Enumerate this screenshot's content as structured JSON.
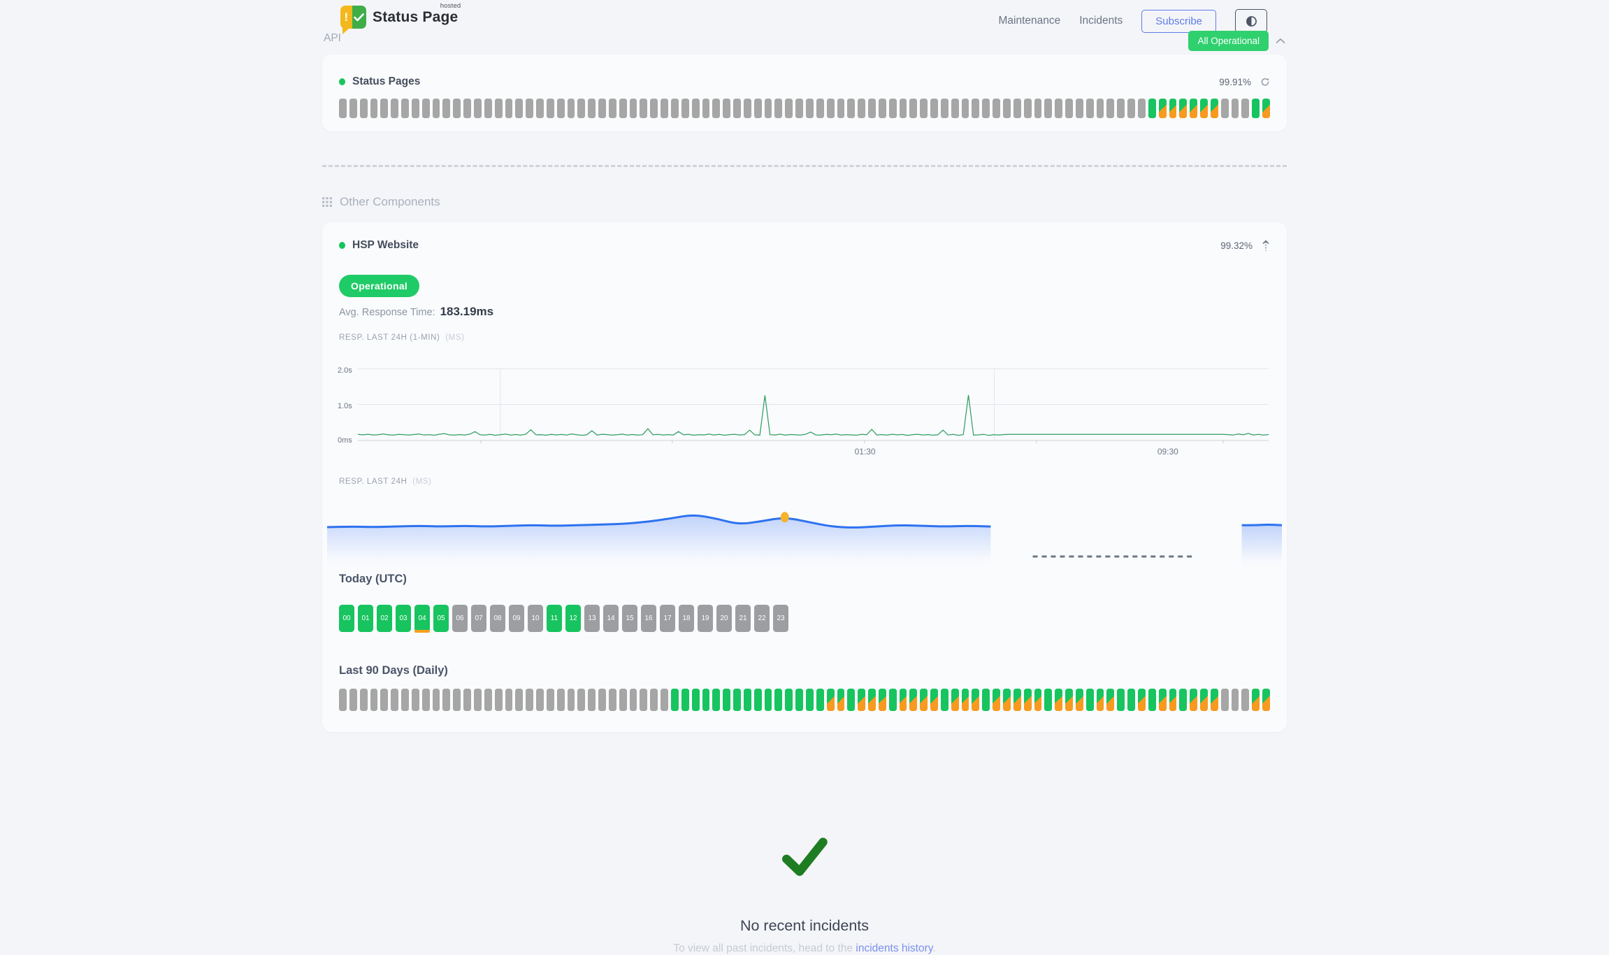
{
  "header": {
    "brand_superscript": "hosted",
    "brand_name": "Status Page",
    "brand_exclaim": "!",
    "nav": {
      "maintenance": "Maintenance",
      "incidents": "Incidents"
    },
    "subscribe_label": "Subscribe",
    "status_badge": "All Operational"
  },
  "api_section": {
    "title": "API",
    "component_name": "Status Pages",
    "uptime": "99.91%",
    "bars_pattern": "nnnnnnnnnnnnnnnnnnnnnnnnnnnnnnnnnnnnnnnnnnnnnnnnnnnnnnnnnnnnnnnnnnnnnnnnnnnnnnuddddddnnnud"
  },
  "other_section": {
    "title": "Other Components",
    "component_name": "HSP Website",
    "uptime": "99.32%",
    "status_label": "Operational",
    "avg_response_label": "Avg. Response Time:",
    "avg_response_value": "183.19ms",
    "today_heading": "Today (UTC)",
    "hours": {
      "labels": [
        "00",
        "01",
        "02",
        "03",
        "04",
        "05",
        "06",
        "07",
        "08",
        "09",
        "10",
        "11",
        "12",
        "13",
        "14",
        "15",
        "16",
        "17",
        "18",
        "19",
        "20",
        "21",
        "22",
        "23"
      ],
      "pattern": "uuuuuunnnnnuunnnnnnnnnnn",
      "degraded_index": 4
    },
    "last90_heading": "Last 90 Days (Daily)",
    "last90_pattern": "nnnnnnnnnnnnnnnnnnnnnnnnnnnnnnnnuuuuuuuuuuuuuuudduddduddddudddudddddudddudduududdudddnnndd"
  },
  "incidents": {
    "title": "No recent incidents",
    "subtitle_prefix": "To view all past incidents, head to the ",
    "link_label": "incidents history",
    "subtitle_suffix": "."
  },
  "chart_data": [
    {
      "type": "line",
      "label": "RESP. LAST 24H (1-MIN)",
      "unit": "(MS)",
      "ylim_ms": [
        0,
        2000
      ],
      "ytick_labels": [
        "2.0s",
        "1.0s",
        "0ms"
      ],
      "xtick_labels": [
        "01:30",
        "09:30"
      ],
      "xtick_positions": [
        0.556,
        0.888
      ],
      "values": [
        168,
        155,
        173,
        149,
        162,
        181,
        158,
        147,
        170,
        159,
        152,
        166,
        178,
        150,
        161,
        145,
        172,
        188,
        156,
        149,
        163,
        152,
        174,
        246,
        158,
        150,
        169,
        144,
        160,
        177,
        151,
        165,
        148,
        172,
        298,
        157,
        162,
        146,
        171,
        154,
        167,
        149,
        178,
        161,
        143,
        158,
        269,
        150,
        173,
        164,
        148,
        159,
        175,
        152,
        166,
        147,
        161,
        326,
        155,
        170,
        149,
        163,
        152,
        247,
        158,
        171,
        146,
        160,
        154,
        176,
        150,
        168,
        145,
        159,
        172,
        153,
        164,
        287,
        157,
        148,
        1253,
        162,
        151,
        174,
        147,
        166,
        158,
        150,
        171,
        234,
        153,
        147,
        168,
        159,
        176,
        149,
        161,
        153,
        145,
        170,
        158,
        309,
        151,
        164,
        148,
        173,
        156,
        167,
        142,
        159,
        172,
        150,
        163,
        146,
        157,
        287,
        152,
        169,
        144,
        161,
        1262,
        148,
        155,
        170,
        139,
        162,
        150,
        166,
        171,
        171,
        170,
        171,
        170,
        170,
        171,
        170,
        170,
        170,
        171,
        170,
        170,
        170,
        171,
        170,
        170,
        170,
        170,
        171,
        170,
        170,
        170,
        171,
        170,
        170,
        170,
        171,
        170,
        170,
        170,
        170,
        171,
        170,
        170,
        171,
        170,
        170,
        170,
        170,
        171,
        170,
        170,
        163,
        149,
        178,
        158,
        196,
        152,
        171,
        147,
        165
      ]
    },
    {
      "type": "area",
      "label": "RESP. LAST 24H",
      "unit": "(MS)",
      "segments": [
        {
          "x_range": [
            0,
            0.695
          ],
          "values": [
            180,
            181,
            180,
            181,
            182,
            181,
            182,
            181,
            182,
            183,
            182,
            183,
            184,
            185,
            188,
            193,
            199,
            193,
            184,
            189,
            195,
            188,
            181,
            179,
            181,
            183,
            182,
            181,
            182,
            181
          ]
        },
        {
          "x_range": [
            0.958,
            1.0
          ],
          "values": [
            183,
            183,
            184,
            183
          ]
        }
      ],
      "marker": {
        "segment": 0,
        "index": 20
      },
      "no_data_gap": {
        "x_range": [
          0.739,
          0.91
        ]
      }
    }
  ],
  "colors": {
    "operational_green": "#17c45f",
    "badge_green": "#2fd06e",
    "degraded_orange": "#f79a1f",
    "pending_gray": "#a6a6a6",
    "accent_blue": "#5f7ce8",
    "line_green": "#2f9e63",
    "area_blue": "#2d72f0",
    "marker_yellow": "#f6b32a",
    "check_green": "#1e7d22"
  }
}
